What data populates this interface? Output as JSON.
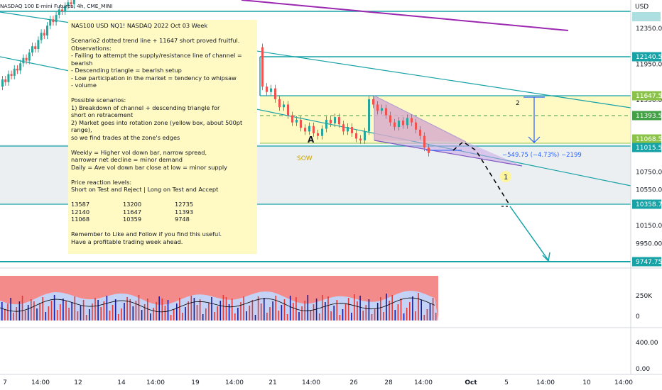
{
  "header": {
    "symbol_line": "NASDAQ 100 E-mini Futures, 4h, CME_MINI"
  },
  "colors": {
    "teal": "#17a2a6",
    "purple": "#9c27b0",
    "green_candle": "#26a69a",
    "red_candle": "#ef5350",
    "note_bg": "#fff9c4",
    "zone_yellow": "#fff9c4",
    "zone_grey": "#eceff1",
    "blue": "#2962ff"
  },
  "price_axis": {
    "currency": "USD",
    "ticks": [
      "12350.00",
      "11950.00",
      "11550.00",
      "10750.00",
      "10550.00",
      "10150.00",
      "9950.00"
    ],
    "tags": [
      {
        "label": "12140.50",
        "color": "#17a2a6"
      },
      {
        "label": "11647.50",
        "color": "#8bc34a"
      },
      {
        "label": "11393.50",
        "color": "#43a047"
      },
      {
        "label": "11068.50",
        "color": "#8bc34a"
      },
      {
        "label": "11015.50",
        "color": "#17a2a6"
      },
      {
        "label": "10358.75",
        "color": "#17a2a6"
      },
      {
        "label": "9747.75",
        "color": "#17a2a6"
      }
    ]
  },
  "volume_axis": {
    "ticks": [
      "250K",
      "0",
      "400.00",
      "0.00"
    ]
  },
  "time_axis": {
    "ticks": [
      "7",
      "14:00",
      "12",
      "14",
      "14:00",
      "19",
      "14:00",
      "21",
      "14:00",
      "26",
      "28",
      "14:00",
      "Oct",
      "5",
      "14:00",
      "10",
      "14:00"
    ]
  },
  "annotations": {
    "wave_a": "A",
    "sow": "SOW",
    "label_2": "2",
    "label_1": "1",
    "measure": "−549.75 (−4.73%) −2199"
  },
  "note": {
    "title": "NAS100 USD NQ1! NASDAQ 2022 Oct 03 Week",
    "lines_1": [
      "Scenario2 dotted trend line + 11647 short proved fruitful.",
      "Observations:",
      "- Failing to attempt the supply/resistance line of channel =",
      "bearish",
      "- Descending triangle = bearish setup",
      "- Low participation in the market = tendency to whipsaw",
      "- volume"
    ],
    "lines_2": [
      "Possible scenarios:",
      "1) Breakdown of channel + descending triangle for",
      "short on retracement",
      "2) Market goes into rotation zone (yellow box, about 500pt range),",
      "so we find trades at the zone's edges"
    ],
    "lines_3": [
      "Weekly = Higher vol down bar, narrow spread,",
      "narrower net decline = minor demand",
      "Daily = Ave vol down bar close at low = minor supply"
    ],
    "lines_4": [
      "Price reaction levels:",
      "Short on Test and Reject   |  Long on Test and Accept"
    ],
    "levels": [
      [
        "13587",
        "13200",
        "12735"
      ],
      [
        "12140",
        "11647",
        "11393"
      ],
      [
        "11068",
        "10359",
        "9748"
      ]
    ],
    "lines_5": [
      "Remember to Like and Follow if you find this useful.",
      "Have a profitable trading week ahead."
    ]
  },
  "chart_data": {
    "type": "candlestick",
    "title": "NASDAQ 100 E-mini Futures, 4h, CME_MINI",
    "ylabel": "USD",
    "horizontal_levels": [
      12140.5,
      11647.5,
      11393.5,
      11068.5,
      11015.5,
      10358.75,
      9747.75
    ],
    "rotation_zone": [
      11068.5,
      11647.5
    ],
    "projection_targets": [
      10358.75,
      9747.75
    ],
    "measured_move": {
      "change": -549.75,
      "percent": -4.73,
      "ticks": -2199
    },
    "candles": [
      {
        "o": 11700,
        "c": 11780
      },
      {
        "o": 11780,
        "c": 11750
      },
      {
        "o": 11750,
        "c": 11840
      },
      {
        "o": 11840,
        "c": 11820
      },
      {
        "o": 11820,
        "c": 11900
      },
      {
        "o": 11900,
        "c": 11880
      },
      {
        "o": 11880,
        "c": 11960
      },
      {
        "o": 11960,
        "c": 12020
      },
      {
        "o": 12020,
        "c": 11990
      },
      {
        "o": 11990,
        "c": 12080
      },
      {
        "o": 12080,
        "c": 12150
      },
      {
        "o": 12150,
        "c": 12120
      },
      {
        "o": 12120,
        "c": 12220
      },
      {
        "o": 12220,
        "c": 12300
      },
      {
        "o": 12300,
        "c": 12270
      },
      {
        "o": 12270,
        "c": 12380
      },
      {
        "o": 12380,
        "c": 12450
      },
      {
        "o": 12450,
        "c": 12420
      },
      {
        "o": 12420,
        "c": 12500
      },
      {
        "o": 12500,
        "c": 12560
      },
      {
        "o": 12560,
        "c": 12540
      },
      {
        "o": 12540,
        "c": 12600
      },
      {
        "o": 12600,
        "c": 12640
      },
      {
        "o": 12640,
        "c": 12620
      },
      {
        "o": 12620,
        "c": 12680
      }
    ],
    "candles_right": [
      {
        "o": 12140,
        "c": 11700
      },
      {
        "o": 11700,
        "c": 11640
      },
      {
        "o": 11640,
        "c": 11680
      },
      {
        "o": 11680,
        "c": 11560
      },
      {
        "o": 11560,
        "c": 11470
      },
      {
        "o": 11470,
        "c": 11500
      },
      {
        "o": 11500,
        "c": 11380
      },
      {
        "o": 11380,
        "c": 11300
      },
      {
        "o": 11300,
        "c": 11330
      },
      {
        "o": 11330,
        "c": 11240
      },
      {
        "o": 11240,
        "c": 11200
      },
      {
        "o": 11200,
        "c": 11260
      },
      {
        "o": 11260,
        "c": 11180
      },
      {
        "o": 11180,
        "c": 11150
      },
      {
        "o": 11150,
        "c": 11230
      },
      {
        "o": 11230,
        "c": 11330
      },
      {
        "o": 11330,
        "c": 11290
      },
      {
        "o": 11290,
        "c": 11360
      },
      {
        "o": 11360,
        "c": 11280
      },
      {
        "o": 11280,
        "c": 11200
      },
      {
        "o": 11200,
        "c": 11250
      },
      {
        "o": 11250,
        "c": 11180
      },
      {
        "o": 11180,
        "c": 11120
      },
      {
        "o": 11120,
        "c": 11100
      },
      {
        "o": 11100,
        "c": 11200
      },
      {
        "o": 11200,
        "c": 11560
      },
      {
        "o": 11560,
        "c": 11500
      },
      {
        "o": 11500,
        "c": 11430
      },
      {
        "o": 11430,
        "c": 11460
      },
      {
        "o": 11460,
        "c": 11380
      },
      {
        "o": 11380,
        "c": 11300
      },
      {
        "o": 11300,
        "c": 11250
      },
      {
        "o": 11250,
        "c": 11320
      },
      {
        "o": 11320,
        "c": 11270
      },
      {
        "o": 11270,
        "c": 11350
      },
      {
        "o": 11350,
        "c": 11300
      },
      {
        "o": 11300,
        "c": 11220
      },
      {
        "o": 11220,
        "c": 11150
      },
      {
        "o": 11150,
        "c": 11020
      },
      {
        "o": 11020,
        "c": 10960
      }
    ]
  }
}
